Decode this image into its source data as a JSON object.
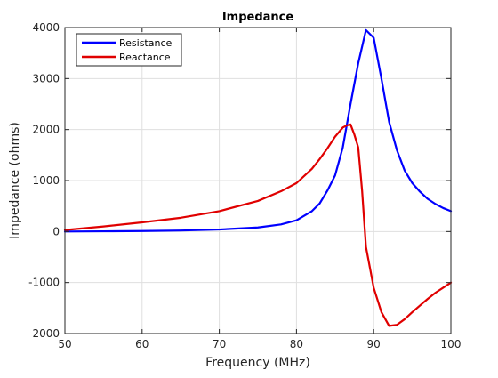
{
  "chart_data": {
    "type": "line",
    "title": "Impedance",
    "xlabel": "Frequency (MHz)",
    "ylabel": "Impedance (ohms)",
    "xlim": [
      50,
      100
    ],
    "ylim": [
      -2000,
      4000
    ],
    "xticks": [
      50,
      60,
      70,
      80,
      90,
      100
    ],
    "yticks": [
      -2000,
      -1000,
      0,
      1000,
      2000,
      3000,
      4000
    ],
    "grid": true,
    "legend_position": "top-left",
    "series": [
      {
        "name": "Resistance",
        "color": "#0000ff",
        "x": [
          50,
          55,
          60,
          65,
          70,
          75,
          78,
          80,
          82,
          83,
          84,
          85,
          86,
          87,
          88,
          89,
          90,
          91,
          92,
          93,
          94,
          95,
          96,
          97,
          98,
          99,
          100
        ],
        "y": [
          0,
          5,
          10,
          20,
          40,
          80,
          140,
          220,
          400,
          550,
          800,
          1100,
          1650,
          2500,
          3300,
          3950,
          3800,
          3000,
          2150,
          1600,
          1200,
          950,
          780,
          640,
          540,
          460,
          400
        ]
      },
      {
        "name": "Reactance",
        "color": "#e00000",
        "x": [
          50,
          55,
          60,
          65,
          70,
          75,
          78,
          80,
          82,
          83,
          84,
          85,
          86,
          86.5,
          87,
          87.5,
          88,
          88.5,
          89,
          89.5,
          90,
          91,
          92,
          93,
          94,
          95,
          96,
          97,
          98,
          99,
          100
        ],
        "y": [
          30,
          100,
          180,
          270,
          400,
          600,
          790,
          950,
          1230,
          1420,
          1630,
          1860,
          2040,
          2080,
          2100,
          1900,
          1650,
          800,
          -300,
          -700,
          -1100,
          -1580,
          -1850,
          -1830,
          -1720,
          -1580,
          -1450,
          -1320,
          -1200,
          -1100,
          -1000
        ]
      }
    ]
  }
}
